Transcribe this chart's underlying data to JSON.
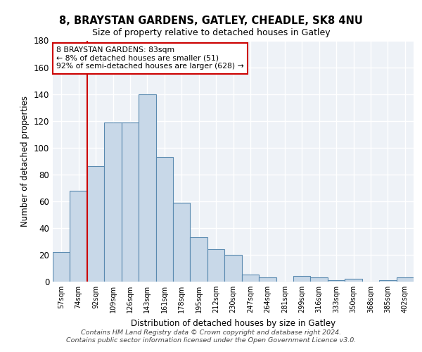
{
  "title1": "8, BRAYSTAN GARDENS, GATLEY, CHEADLE, SK8 4NU",
  "title2": "Size of property relative to detached houses in Gatley",
  "xlabel": "Distribution of detached houses by size in Gatley",
  "ylabel": "Number of detached properties",
  "categories": [
    "57sqm",
    "74sqm",
    "92sqm",
    "109sqm",
    "126sqm",
    "143sqm",
    "161sqm",
    "178sqm",
    "195sqm",
    "212sqm",
    "230sqm",
    "247sqm",
    "264sqm",
    "281sqm",
    "299sqm",
    "316sqm",
    "333sqm",
    "350sqm",
    "368sqm",
    "385sqm",
    "402sqm"
  ],
  "values": [
    22,
    68,
    86,
    119,
    119,
    140,
    93,
    59,
    33,
    24,
    20,
    5,
    3,
    0,
    4,
    3,
    1,
    2,
    0,
    1,
    3
  ],
  "bar_color": "#c8d8e8",
  "bar_edge_color": "#5a8ab0",
  "vline_color": "#cc0000",
  "annotation_text": "8 BRAYSTAN GARDENS: 83sqm\n← 8% of detached houses are smaller (51)\n92% of semi-detached houses are larger (628) →",
  "annotation_box_color": "#ffffff",
  "annotation_box_edge": "#cc0000",
  "ylim": [
    0,
    180
  ],
  "yticks": [
    0,
    20,
    40,
    60,
    80,
    100,
    120,
    140,
    160,
    180
  ],
  "footer_text": "Contains HM Land Registry data © Crown copyright and database right 2024.\nContains public sector information licensed under the Open Government Licence v3.0.",
  "bg_color": "#eef2f7",
  "grid_color": "#ffffff"
}
